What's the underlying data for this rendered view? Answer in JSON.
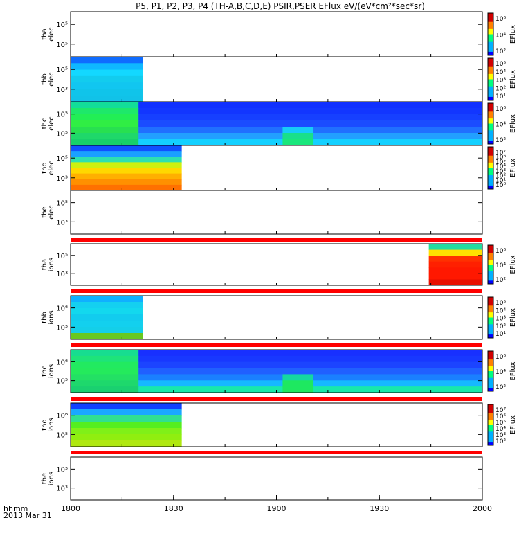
{
  "title": "P5, P1, P2, P3, P4 (TH-A,B,C,D,E) PSIR,PSER EFlux eV/(eV*cm²*sec*sr)",
  "colorbar_unit": "EFlux",
  "time_axis": {
    "tick_labels": [
      "1800",
      "1830",
      "1900",
      "1930",
      "2000"
    ],
    "corner_label_line1": "hhmm",
    "corner_label_line2": "2013 Mar 31"
  },
  "chart_data": {
    "type": "heatmap",
    "title": "P5, P1, P2, P3, P4 (TH-A,B,C,D,E) PSIR,PSER EFlux eV/(eV*cm²*sec*sr)",
    "x_range": [
      "18:00",
      "20:00"
    ],
    "x_ticks": [
      "1800",
      "1830",
      "1900",
      "1930",
      "2000"
    ],
    "y_scale": "log",
    "panels": [
      {
        "id": "tha-elec",
        "ylabel": [
          "tha",
          "elec"
        ],
        "yticks": [
          "10⁵",
          "10⁵"
        ],
        "x_start": 1.74,
        "x_end": 2.0,
        "bands": [
          "#18e6a0",
          "#ffaa00",
          "#ff2000",
          "#dd0000",
          "#cc0000",
          "#aa0000",
          "#aa0000"
        ],
        "colorbar": {
          "min_exp": 0,
          "max_exp": 6,
          "labels": [
            "10⁶",
            "10⁴",
            "10²"
          ]
        }
      },
      {
        "id": "thb-elec",
        "ylabel": [
          "thb",
          "elec"
        ],
        "yticks": [
          "10⁵",
          "10³"
        ],
        "x_start": 0.0,
        "x_end": 0.175,
        "bands": [
          "#0f6cff",
          "#0fb8ff",
          "#13d8ff",
          "#12ccee",
          "#11c6f0",
          "#10c4ea",
          "#11c2e8"
        ],
        "colorbar": {
          "min_exp": 0,
          "max_exp": 5,
          "labels": [
            "10⁵",
            "10⁴",
            "10³",
            "10²",
            "10¹"
          ]
        }
      },
      {
        "id": "thc-elec",
        "ylabel": [
          "thc",
          "elec"
        ],
        "yticks": [
          "10⁵",
          "10⁵"
        ],
        "x_start": 0.0,
        "x_end": 1.0,
        "first_block": {
          "x_end": 0.165,
          "bands": [
            "#13dd99",
            "#1ee86a",
            "#22ee55",
            "#30ee44",
            "#28e050",
            "#1fd86a",
            "#18d06a"
          ]
        },
        "bands": [
          "#1030ff",
          "#1236ff",
          "#1640ff",
          "#1b4cff",
          "#2070ff",
          "#22a0ff",
          "#14d0ff"
        ],
        "highlight": {
          "x_start": 0.515,
          "x_end": 0.59,
          "bands": [
            "#16cdf7",
            "#19e08a",
            "#19e77c"
          ]
        },
        "colorbar": {
          "min_exp": 0,
          "max_exp": 6,
          "labels": [
            "10⁶",
            "10⁴",
            "10²"
          ]
        }
      },
      {
        "id": "thd-elec",
        "ylabel": [
          "thd",
          "elec"
        ],
        "yticks": [
          "10⁵",
          "10³"
        ],
        "x_start": 0.0,
        "x_end": 0.27,
        "bands": [
          "#1050ff",
          "#1aa0ff",
          "#2ee0b0",
          "#cdf010",
          "#ffd800",
          "#ffb000",
          "#ff9000",
          "#ff7000"
        ],
        "colorbar": {
          "min_exp": 0,
          "max_exp": 7,
          "labels": [
            "10⁷",
            "10⁶",
            "10⁵",
            "10⁴",
            "10³",
            "10²",
            "10¹",
            "10⁰"
          ]
        }
      },
      {
        "id": "the-elec",
        "ylabel": [
          "the",
          "elec"
        ],
        "yticks": [
          "10⁵",
          "10³"
        ],
        "x_start": 0,
        "x_end": 0,
        "bands": []
      },
      {
        "id": "tha-ions",
        "ylabel": [
          "tha",
          "ions"
        ],
        "yticks": [
          "10⁵",
          "10³"
        ],
        "x_start": 0.87,
        "x_end": 1.0,
        "bands": [
          "#22dda0",
          "#ffe000",
          "#ff3000",
          "#ff2000",
          "#ff1800",
          "#ff1800",
          "#e81000"
        ],
        "colorbar": {
          "min_exp": 0,
          "max_exp": 6,
          "labels": [
            "10⁶",
            "10⁴",
            "10²"
          ]
        }
      },
      {
        "id": "thb-ions",
        "ylabel": [
          "thb",
          "ions"
        ],
        "yticks": [
          "10⁶",
          "10⁵"
        ],
        "x_start": 0.0,
        "x_end": 0.175,
        "bands": [
          "#10b0ff",
          "#14d0f0",
          "#13d8ee",
          "#12ccee",
          "#13d0ee",
          "#14cfe8",
          "#68c820"
        ],
        "colorbar": {
          "min_exp": 0,
          "max_exp": 5,
          "labels": [
            "10⁵",
            "10⁴",
            "10³",
            "10²",
            "10¹"
          ]
        }
      },
      {
        "id": "thc-ions",
        "ylabel": [
          "thc",
          "ions"
        ],
        "yticks": [
          "10⁶",
          "10⁵"
        ],
        "x_start": 0.0,
        "x_end": 1.0,
        "first_block": {
          "x_end": 0.165,
          "bands": [
            "#17dd90",
            "#1ee47a",
            "#22ea60",
            "#24ea5c",
            "#23e064",
            "#1ed86c",
            "#1ad070"
          ]
        },
        "bands": [
          "#1830ff",
          "#1838ff",
          "#1c44ff",
          "#2060ff",
          "#1a80ff",
          "#16b8ff",
          "#18e8aa"
        ],
        "highlight": {
          "x_start": 0.515,
          "x_end": 0.59,
          "bands": [
            "#15d8a0",
            "#1ee860",
            "#1ee860"
          ]
        },
        "colorbar": {
          "min_exp": 0,
          "max_exp": 6,
          "labels": [
            "10⁶",
            "10⁴",
            "10²"
          ]
        }
      },
      {
        "id": "thd-ions",
        "ylabel": [
          "thd",
          "ions"
        ],
        "yticks": [
          "10⁶",
          "10⁵"
        ],
        "x_start": 0.0,
        "x_end": 0.27,
        "bands": [
          "#1040ff",
          "#1aa8ff",
          "#30e090",
          "#55ee20",
          "#80f018",
          "#90ee10",
          "#b0e810"
        ],
        "colorbar": {
          "min_exp": 0,
          "max_exp": 7,
          "labels": [
            "10⁷",
            "10⁶",
            "10⁵",
            "10⁴",
            "10³",
            "10²"
          ]
        }
      },
      {
        "id": "the-ions",
        "ylabel": [
          "the",
          "ions"
        ],
        "yticks": [
          "10⁵",
          "10³"
        ],
        "x_start": 0,
        "x_end": 0,
        "bands": []
      }
    ],
    "flag_bars": [
      {
        "below_panel": 4,
        "color": "#ff0000"
      },
      {
        "below_panel": 5,
        "color": "#ff0000"
      },
      {
        "below_panel": 6,
        "color": "#ff0000"
      },
      {
        "below_panel": 7,
        "color": "#ff0000"
      },
      {
        "below_panel": 8,
        "color": "#ff0000"
      }
    ]
  }
}
